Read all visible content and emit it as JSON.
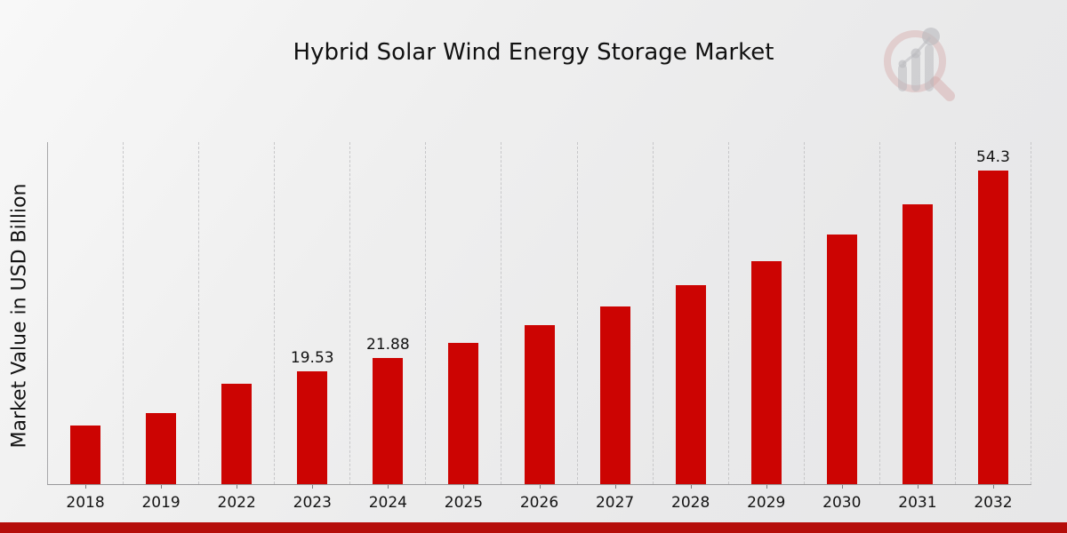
{
  "title": "Hybrid Solar Wind Energy Storage Market",
  "watermark": {
    "icon": "magnifier-bar-chart-logo"
  },
  "footer": {
    "accent_color": "#b50d0a"
  },
  "chart_data": {
    "type": "bar",
    "title": "Hybrid Solar Wind Energy Storage Market",
    "xlabel": "",
    "ylabel": "Market Value in USD Billion",
    "categories": [
      "2018",
      "2019",
      "2022",
      "2023",
      "2024",
      "2025",
      "2026",
      "2027",
      "2028",
      "2029",
      "2030",
      "2031",
      "2032"
    ],
    "values": [
      10.2,
      12.3,
      17.4,
      19.53,
      21.88,
      24.5,
      27.5,
      30.8,
      34.4,
      38.6,
      43.2,
      48.4,
      54.3
    ],
    "data_labels": [
      "",
      "",
      "",
      "19.53",
      "21.88",
      "",
      "",
      "",
      "",
      "",
      "",
      "",
      "54.3"
    ],
    "ylim": [
      0,
      59.4
    ],
    "bar_color": "#cc0402",
    "grid": "vertical-dashed",
    "legend": "none"
  }
}
